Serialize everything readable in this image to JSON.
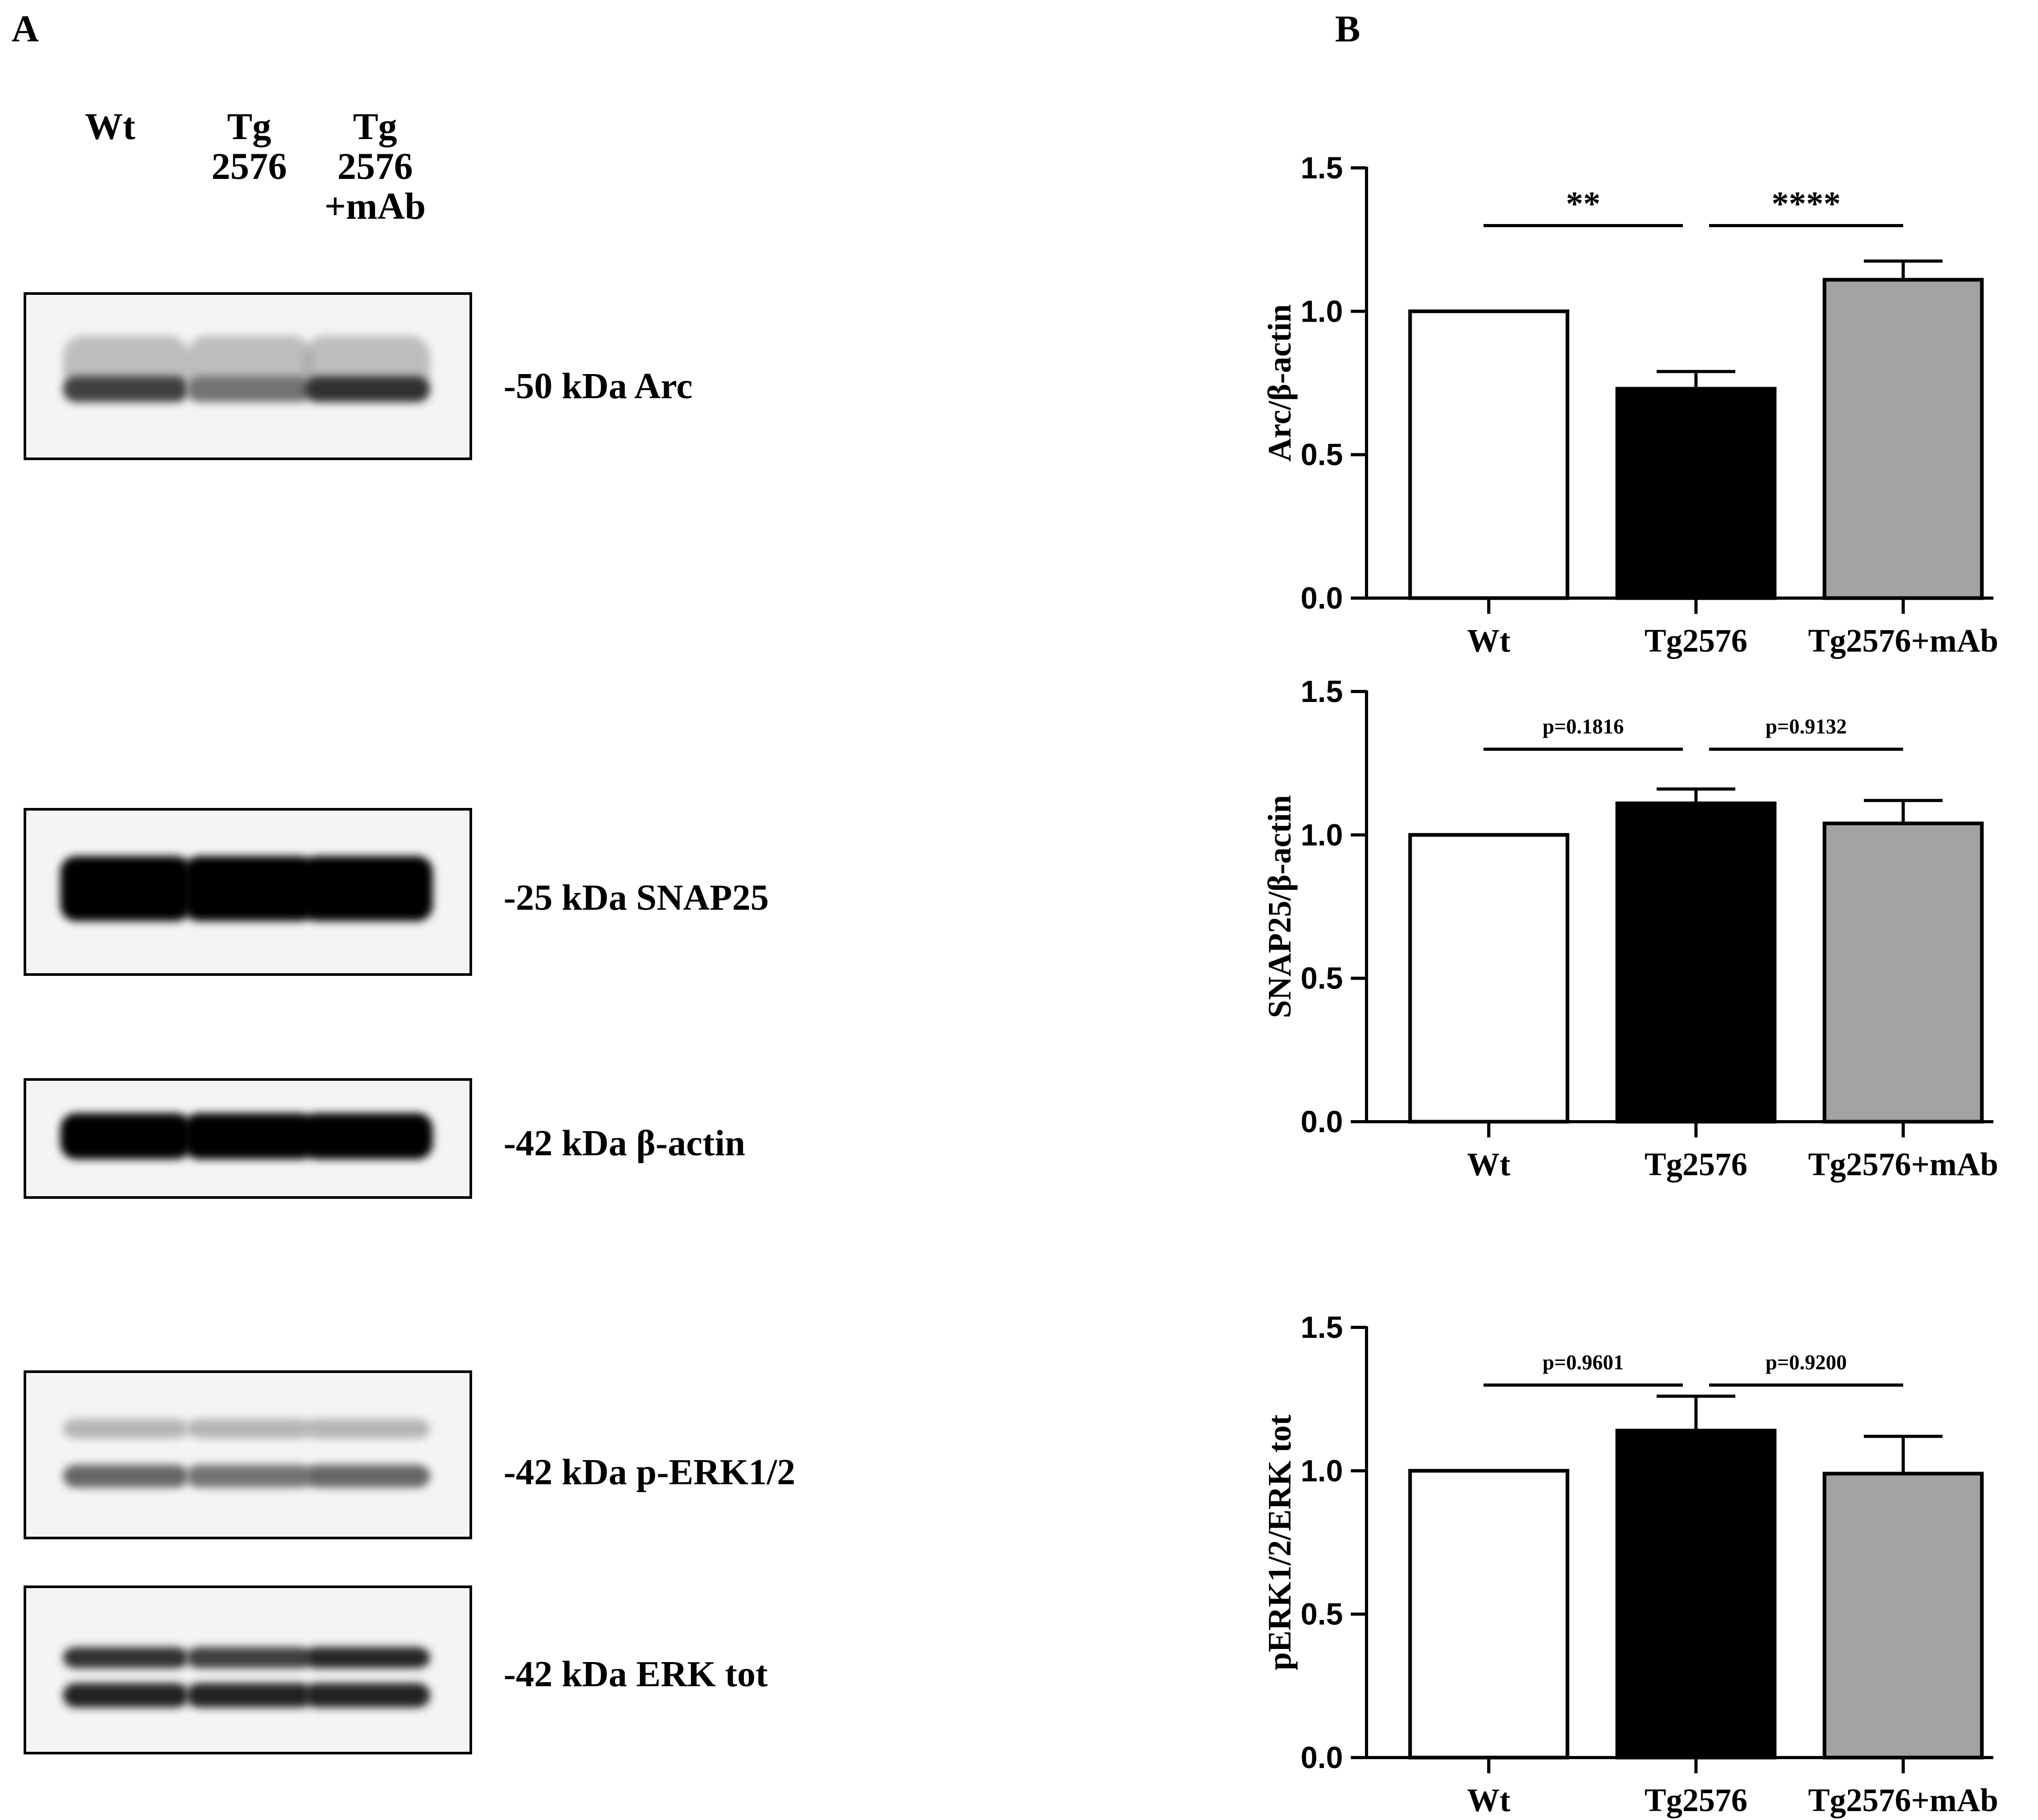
{
  "panels": {
    "a": "A",
    "b": "B"
  },
  "lanes": [
    {
      "line1": "Wt",
      "line2": "",
      "line3": ""
    },
    {
      "line1": "Tg",
      "line2": "2576",
      "line3": ""
    },
    {
      "line1": "Tg",
      "line2": "2576",
      "line3": "+mAb"
    }
  ],
  "blots": [
    {
      "label": "-50 kDa Arc",
      "intensity": [
        0.75,
        0.55,
        0.8
      ],
      "style": "diffuse"
    },
    {
      "label": "-25 kDa SNAP25",
      "intensity": [
        1.0,
        1.0,
        0.95
      ],
      "style": "solid"
    },
    {
      "label": "-42 kDa β-actin",
      "intensity": [
        1.0,
        1.0,
        1.0
      ],
      "style": "solid"
    },
    {
      "label": "-42 kDa p-ERK1/2",
      "intensity": [
        0.6,
        0.55,
        0.6
      ],
      "style": "double-faint"
    },
    {
      "label": "-42 kDa ERK tot",
      "intensity": [
        0.8,
        0.75,
        0.85
      ],
      "style": "double"
    }
  ],
  "chart_data": [
    {
      "type": "bar",
      "categories": [
        "Wt",
        "Tg2576",
        "Tg2576+mAb"
      ],
      "values": [
        1.0,
        0.73,
        1.11
      ],
      "errors": [
        0,
        0.06,
        0.065
      ],
      "ylabel": "Arc/β-actin",
      "ylim": [
        0,
        1.5
      ],
      "yticks": [
        "0.0",
        "0.5",
        "1.0",
        "1.5"
      ],
      "bar_colors": [
        "#ffffff",
        "#000000",
        "#a3a3a3"
      ],
      "comparisons": [
        {
          "from": 0,
          "to": 1,
          "label": "**",
          "size": "large"
        },
        {
          "from": 1,
          "to": 2,
          "label": "****",
          "size": "large"
        }
      ]
    },
    {
      "type": "bar",
      "categories": [
        "Wt",
        "Tg2576",
        "Tg2576+mAb"
      ],
      "values": [
        1.0,
        1.11,
        1.04
      ],
      "errors": [
        0,
        0.05,
        0.08
      ],
      "ylabel": "SNAP25/β-actin",
      "ylim": [
        0,
        1.5
      ],
      "yticks": [
        "0.0",
        "0.5",
        "1.0",
        "1.5"
      ],
      "bar_colors": [
        "#ffffff",
        "#000000",
        "#a3a3a3"
      ],
      "comparisons": [
        {
          "from": 0,
          "to": 1,
          "label": "p=0.1816",
          "size": "small"
        },
        {
          "from": 1,
          "to": 2,
          "label": "p=0.9132",
          "size": "small"
        }
      ]
    },
    {
      "type": "bar",
      "categories": [
        "Wt",
        "Tg2576",
        "Tg2576+mAb"
      ],
      "values": [
        1.0,
        1.14,
        0.99
      ],
      "errors": [
        0,
        0.12,
        0.13
      ],
      "ylabel": "pERK1/2/ERK tot",
      "ylim": [
        0,
        1.5
      ],
      "yticks": [
        "0.0",
        "0.5",
        "1.0",
        "1.5"
      ],
      "bar_colors": [
        "#ffffff",
        "#000000",
        "#a3a3a3"
      ],
      "comparisons": [
        {
          "from": 0,
          "to": 1,
          "label": "p=0.9601",
          "size": "small"
        },
        {
          "from": 1,
          "to": 2,
          "label": "p=0.9200",
          "size": "small"
        }
      ]
    }
  ]
}
